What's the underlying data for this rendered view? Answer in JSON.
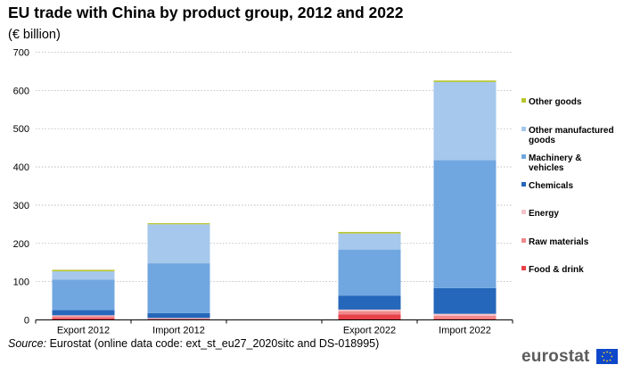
{
  "title": "EU trade with China by product group, 2012 and 2022",
  "subtitle": "(€ billion)",
  "source": {
    "label": "Source:",
    "text": "Eurostat (online data code: ext_st_eu27_2020sitc and DS-018995)"
  },
  "logo": {
    "text": "eurostat"
  },
  "chart_data": {
    "type": "bar",
    "stacked": true,
    "title": "EU trade with China by product group, 2012 and 2022",
    "subtitle": "(€ billion)",
    "categories": [
      "Export 2012",
      "Import 2012",
      "",
      "Export 2022",
      "Import 2022"
    ],
    "ylim": [
      0,
      700
    ],
    "yticks": [
      0,
      100,
      200,
      300,
      400,
      500,
      600,
      700
    ],
    "grid": true,
    "legend_position": "right",
    "series": [
      {
        "name": "Food & drink",
        "color": "#e8424a",
        "values": [
          5,
          1,
          null,
          14,
          3
        ]
      },
      {
        "name": "Raw materials",
        "color": "#f0898c",
        "values": [
          5,
          3,
          null,
          9,
          8
        ]
      },
      {
        "name": "Energy",
        "color": "#f6c3c9",
        "values": [
          2,
          1,
          null,
          4,
          5
        ]
      },
      {
        "name": "Chemicals",
        "color": "#2567ba",
        "values": [
          14,
          13,
          null,
          36,
          67
        ]
      },
      {
        "name": "Machinery & vehicles",
        "color": "#71a7e0",
        "values": [
          79,
          130,
          null,
          121,
          335
        ]
      },
      {
        "name": "Other manufactured goods",
        "color": "#a6c8ec",
        "values": [
          22,
          102,
          null,
          42,
          204
        ]
      },
      {
        "name": "Other goods",
        "color": "#b9c530",
        "values": [
          4,
          3,
          null,
          4,
          4
        ]
      }
    ]
  }
}
